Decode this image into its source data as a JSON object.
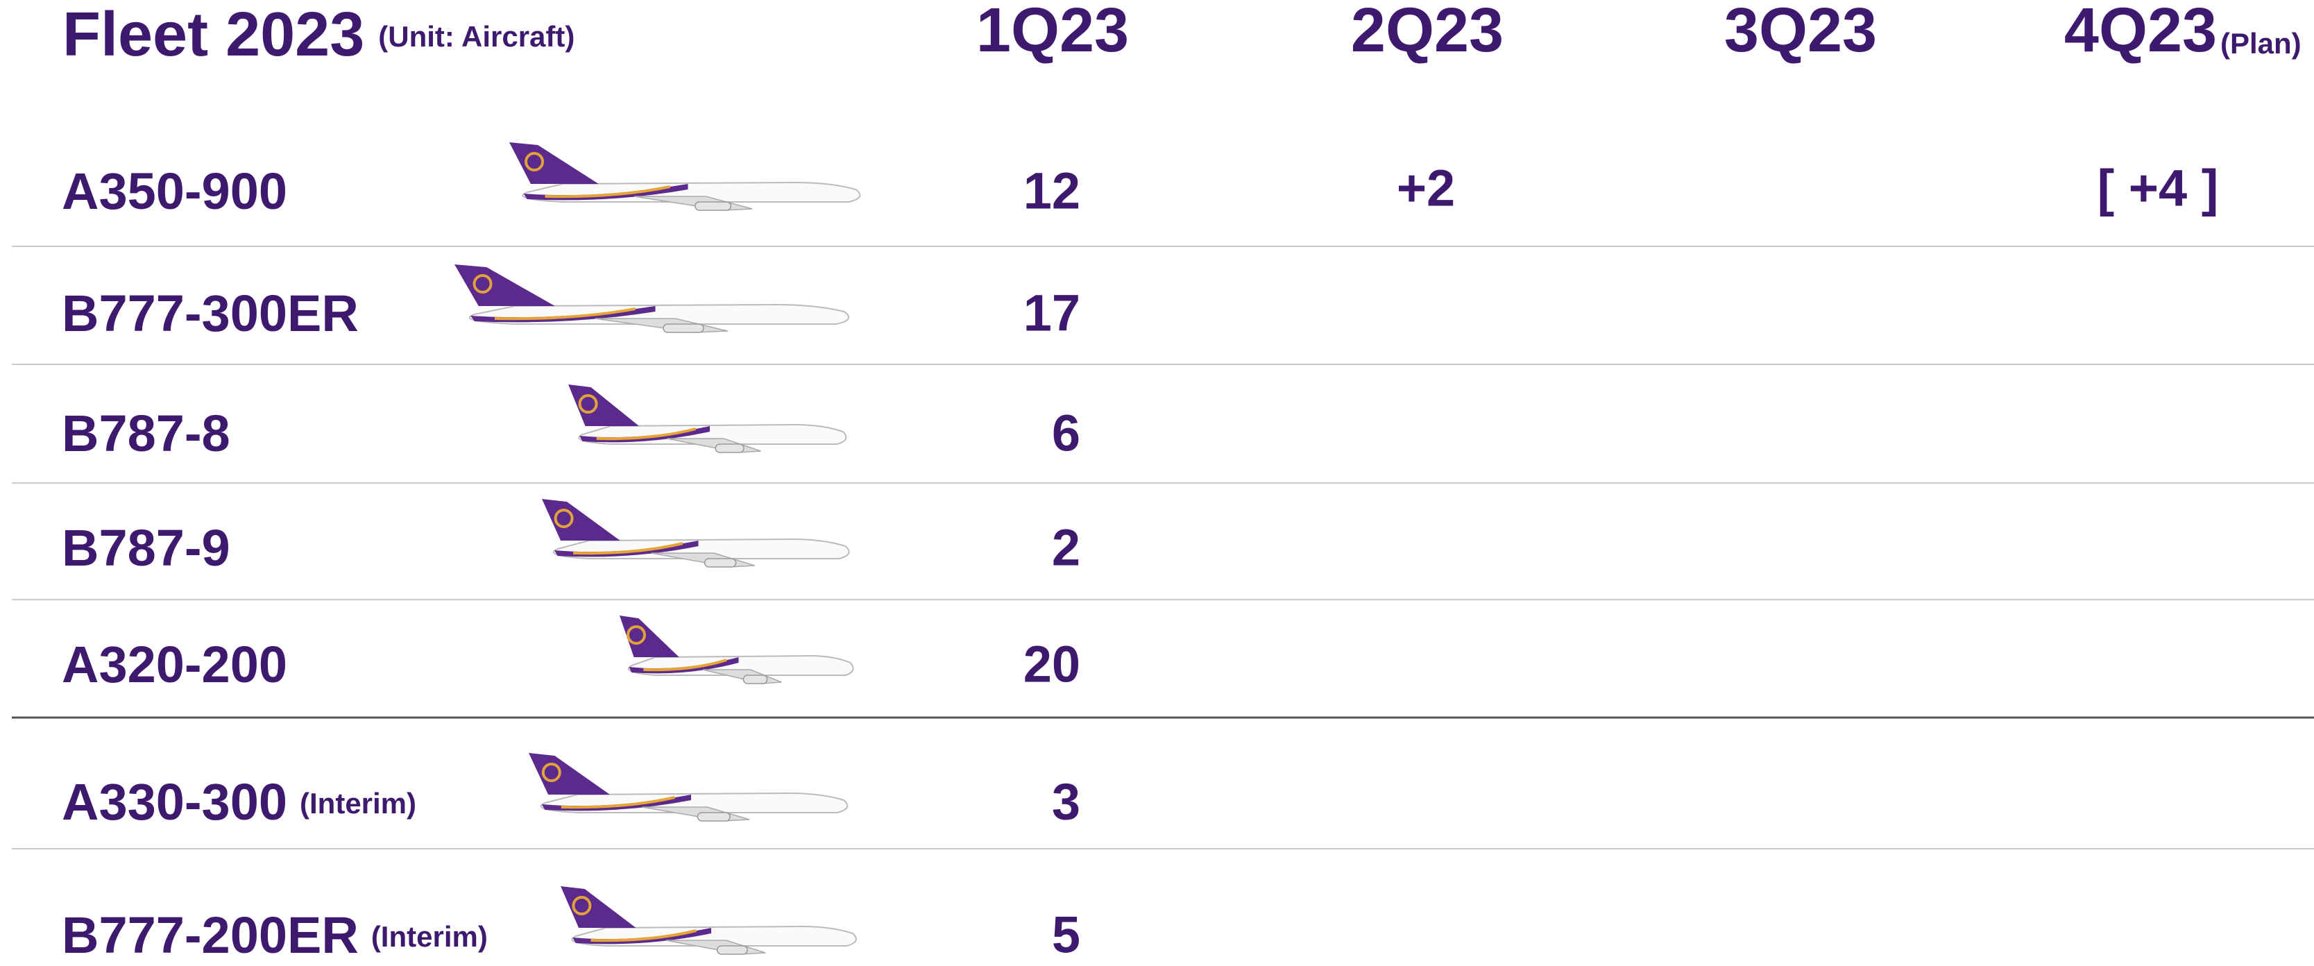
{
  "header": {
    "title": "Fleet 2023",
    "unit": "(Unit: Aircraft)",
    "columns": [
      "1Q23",
      "2Q23",
      "3Q23",
      "4Q23"
    ],
    "last_column_note": "(Plan)"
  },
  "rows": [
    {
      "model": "A350-900",
      "q1": 12,
      "q2": "+2",
      "q4": "[ +4 ]"
    },
    {
      "model": "B777-300ER",
      "q1": 17
    },
    {
      "model": "B787-8",
      "q1": 6
    },
    {
      "model": "B787-9",
      "q1": 2
    },
    {
      "model": "A320-200",
      "q1": 20
    },
    {
      "model": "A330-300",
      "note": "(Interim)",
      "q1": 3
    },
    {
      "model": "B777-200ER",
      "note": "(Interim)",
      "q1": 5
    }
  ]
}
